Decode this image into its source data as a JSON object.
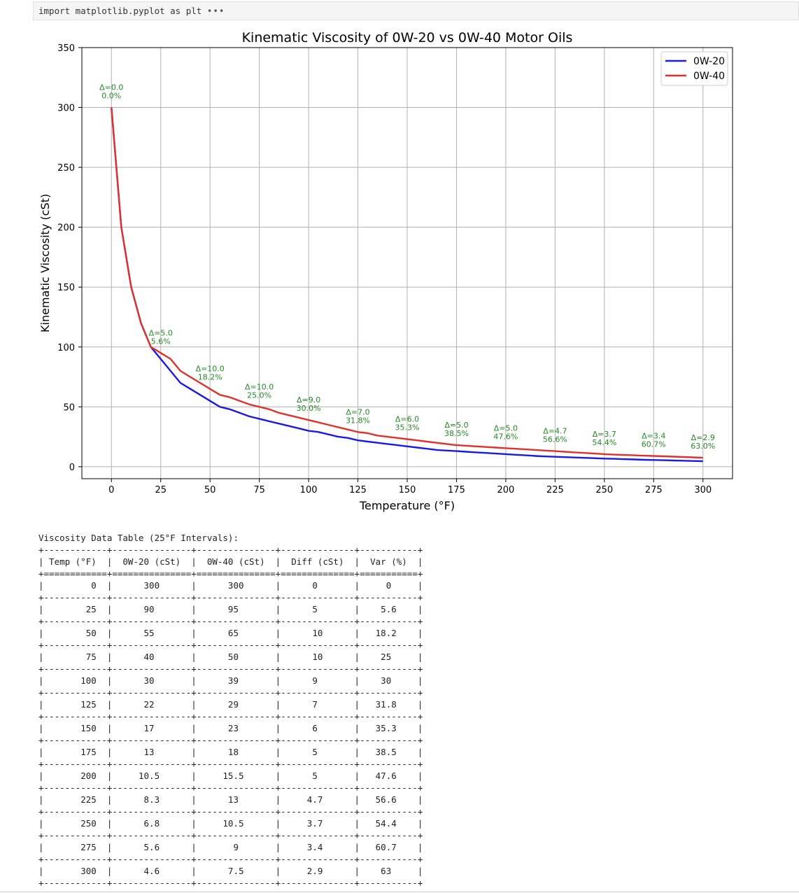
{
  "code_cell": {
    "text": "import matplotlib.pyplot as plt",
    "collapsed_indicator": "•••"
  },
  "chart_data": {
    "type": "line",
    "title": "Kinematic Viscosity of 0W-20 vs 0W-40 Motor Oils",
    "xlabel": "Temperature (°F)",
    "ylabel": "Kinematic Viscosity (cSt)",
    "xlim": [
      -15,
      315
    ],
    "ylim": [
      -10,
      350
    ],
    "xticks": [
      0,
      25,
      50,
      75,
      100,
      125,
      150,
      175,
      200,
      225,
      250,
      275,
      300
    ],
    "yticks": [
      0,
      50,
      100,
      150,
      200,
      250,
      300,
      350
    ],
    "grid": true,
    "legend_position": "top-right",
    "series": [
      {
        "name": "0W-20",
        "color": "#1a1ae6",
        "x": [
          0,
          5,
          10,
          15,
          20,
          25,
          30,
          35,
          40,
          45,
          50,
          55,
          60,
          65,
          70,
          75,
          80,
          85,
          90,
          95,
          100,
          105,
          110,
          115,
          120,
          125,
          130,
          135,
          140,
          145,
          150,
          155,
          160,
          165,
          170,
          175,
          180,
          185,
          190,
          195,
          200,
          205,
          210,
          215,
          220,
          225,
          230,
          235,
          240,
          245,
          250,
          255,
          260,
          265,
          270,
          275,
          280,
          285,
          290,
          295,
          300
        ],
        "y": [
          300,
          200,
          150,
          120,
          100,
          90,
          80,
          70,
          65,
          60,
          55,
          50,
          48,
          45,
          42,
          40,
          38,
          36,
          34,
          32,
          30,
          29,
          27,
          25,
          24,
          22,
          21,
          20,
          19,
          18,
          17,
          16,
          15,
          14,
          13.5,
          13,
          12.5,
          12,
          11.5,
          11,
          10.5,
          10,
          9.5,
          9,
          8.6,
          8.3,
          8,
          7.7,
          7.4,
          7.1,
          6.8,
          6.6,
          6.3,
          6.1,
          5.8,
          5.6,
          5.4,
          5.2,
          5,
          4.8,
          4.6
        ]
      },
      {
        "name": "0W-40",
        "color": "#e0312d",
        "x": [
          0,
          5,
          10,
          15,
          20,
          25,
          30,
          35,
          40,
          45,
          50,
          55,
          60,
          65,
          70,
          75,
          80,
          85,
          90,
          95,
          100,
          105,
          110,
          115,
          120,
          125,
          130,
          135,
          140,
          145,
          150,
          155,
          160,
          165,
          170,
          175,
          180,
          185,
          190,
          195,
          200,
          205,
          210,
          215,
          220,
          225,
          230,
          235,
          240,
          245,
          250,
          255,
          260,
          265,
          270,
          275,
          280,
          285,
          290,
          295,
          300
        ],
        "y": [
          300,
          200,
          150,
          120,
          100,
          95,
          90,
          80,
          75,
          70,
          65,
          60,
          58,
          55,
          52,
          50,
          48,
          45,
          43,
          41,
          39,
          37,
          35,
          33,
          31,
          29,
          28,
          26,
          25,
          24,
          23,
          22,
          21,
          20,
          19,
          18,
          17.5,
          17,
          16.5,
          16,
          15.5,
          15,
          14.5,
          14,
          13.5,
          13,
          12.5,
          12,
          11.5,
          11,
          10.5,
          10.1,
          9.8,
          9.5,
          9.2,
          9,
          8.7,
          8.4,
          8.1,
          7.8,
          7.5
        ]
      }
    ],
    "annotations": [
      {
        "x": 0,
        "y": 300,
        "line1": "Δ=0.0",
        "line2": "0.0%"
      },
      {
        "x": 25,
        "y": 95,
        "line1": "Δ=5.0",
        "line2": "5.6%"
      },
      {
        "x": 50,
        "y": 65,
        "line1": "Δ=10.0",
        "line2": "18.2%"
      },
      {
        "x": 75,
        "y": 50,
        "line1": "Δ=10.0",
        "line2": "25.0%"
      },
      {
        "x": 100,
        "y": 39,
        "line1": "Δ=9.0",
        "line2": "30.0%"
      },
      {
        "x": 125,
        "y": 29,
        "line1": "Δ=7.0",
        "line2": "31.8%"
      },
      {
        "x": 150,
        "y": 23,
        "line1": "Δ=6.0",
        "line2": "35.3%"
      },
      {
        "x": 175,
        "y": 18,
        "line1": "Δ=5.0",
        "line2": "38.5%"
      },
      {
        "x": 200,
        "y": 15.5,
        "line1": "Δ=5.0",
        "line2": "47.6%"
      },
      {
        "x": 225,
        "y": 13,
        "line1": "Δ=4.7",
        "line2": "56.6%"
      },
      {
        "x": 250,
        "y": 10.5,
        "line1": "Δ=3.7",
        "line2": "54.4%"
      },
      {
        "x": 275,
        "y": 9,
        "line1": "Δ=3.4",
        "line2": "60.7%"
      },
      {
        "x": 300,
        "y": 7.5,
        "line1": "Δ=2.9",
        "line2": "63.0%"
      }
    ],
    "annotation_color": "#228b22"
  },
  "table": {
    "title": "Viscosity Data Table (25°F Intervals):",
    "headers": [
      "Temp (°F)",
      "0W-20 (cSt)",
      "0W-40 (cSt)",
      "Diff (cSt)",
      "Var (%)"
    ],
    "rows": [
      [
        "0",
        "300",
        "300",
        "0",
        "0"
      ],
      [
        "25",
        "90",
        "95",
        "5",
        "5.6"
      ],
      [
        "50",
        "55",
        "65",
        "10",
        "18.2"
      ],
      [
        "75",
        "40",
        "50",
        "10",
        "25"
      ],
      [
        "100",
        "30",
        "39",
        "9",
        "30"
      ],
      [
        "125",
        "22",
        "29",
        "7",
        "31.8"
      ],
      [
        "150",
        "17",
        "23",
        "6",
        "35.3"
      ],
      [
        "175",
        "13",
        "18",
        "5",
        "38.5"
      ],
      [
        "200",
        "10.5",
        "15.5",
        "5",
        "47.6"
      ],
      [
        "225",
        "8.3",
        "13",
        "4.7",
        "56.6"
      ],
      [
        "250",
        "6.8",
        "10.5",
        "3.7",
        "54.4"
      ],
      [
        "275",
        "5.6",
        "9",
        "3.4",
        "60.7"
      ],
      [
        "300",
        "4.6",
        "7.5",
        "2.9",
        "63"
      ]
    ]
  }
}
